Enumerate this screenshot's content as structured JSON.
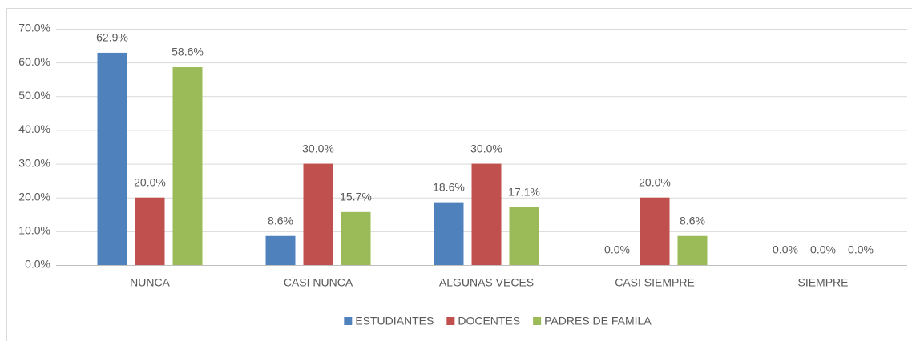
{
  "chart_data": {
    "type": "bar",
    "categories": [
      "NUNCA",
      "CASI NUNCA",
      "ALGUNAS VECES",
      "CASI SIEMPRE",
      "SIEMPRE"
    ],
    "series": [
      {
        "name": "ESTUDIANTES",
        "color": "#4f81bd",
        "values": [
          62.9,
          8.6,
          18.6,
          0,
          0
        ],
        "value_labels": [
          "62.9%",
          "8.6%",
          "18.6%",
          "0.0%",
          "0.0%"
        ]
      },
      {
        "name": "DOCENTES",
        "color": "#c0504d",
        "values": [
          20,
          30,
          30,
          20,
          0
        ],
        "value_labels": [
          "20.0%",
          "30.0%",
          "30.0%",
          "20.0%",
          "0.0%"
        ]
      },
      {
        "name": "PADRES DE FAMILA",
        "color": "#9bbb59",
        "values": [
          58.6,
          15.7,
          17.1,
          8.6,
          0
        ],
        "value_labels": [
          "58.6%",
          "15.7%",
          "17.1%",
          "8.6%",
          "0.0%"
        ]
      }
    ],
    "ylim": [
      0,
      70
    ],
    "yticks": [
      {
        "value": 0,
        "label": "0.0%"
      },
      {
        "value": 10,
        "label": "10.0%"
      },
      {
        "value": 20,
        "label": "20.0%"
      },
      {
        "value": 30,
        "label": "30.0%"
      },
      {
        "value": 40,
        "label": "40.0%"
      },
      {
        "value": 50,
        "label": "50.0%"
      },
      {
        "value": 60,
        "label": "60.0%"
      },
      {
        "value": 70,
        "label": "70.0%"
      }
    ],
    "grid": true,
    "legend": "bottom"
  }
}
